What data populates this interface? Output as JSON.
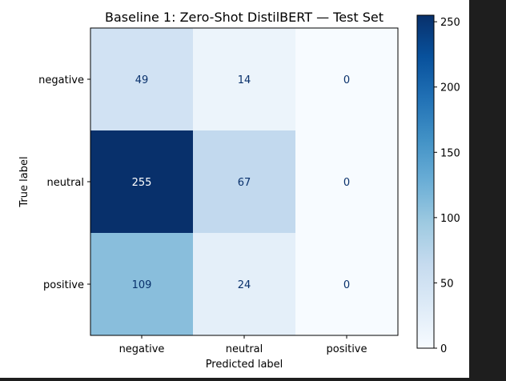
{
  "chart_data": {
    "type": "heatmap",
    "title": "Baseline 1: Zero-Shot DistilBERT — Test Set",
    "xlabel": "Predicted label",
    "ylabel": "True label",
    "x_categories": [
      "negative",
      "neutral",
      "positive"
    ],
    "y_categories": [
      "negative",
      "neutral",
      "positive"
    ],
    "matrix": [
      [
        49,
        14,
        0
      ],
      [
        255,
        67,
        0
      ],
      [
        109,
        24,
        0
      ]
    ],
    "colormap": "Blues",
    "colorbar": {
      "min": 0,
      "max": 255,
      "ticks": [
        0,
        50,
        100,
        150,
        200,
        250
      ]
    },
    "colors": {
      "figure_background": "#ffffff",
      "outer_background": "#1e1e1e",
      "dark_text": "#08306b",
      "light_text": "#ffffff"
    }
  }
}
